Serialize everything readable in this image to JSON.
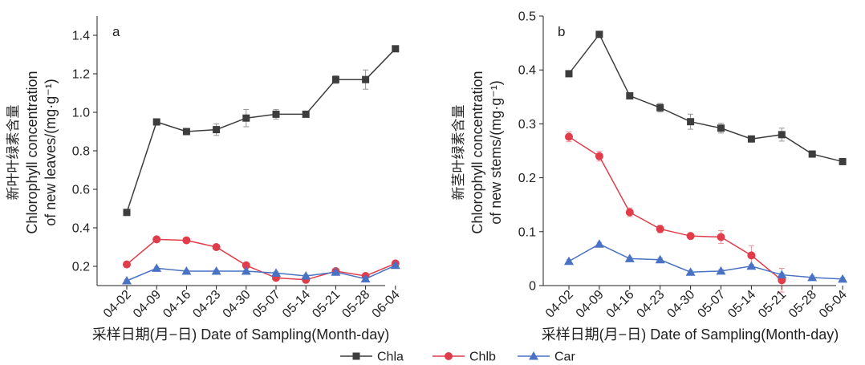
{
  "legend": [
    {
      "name": "Chla",
      "color": "#3d3d3d",
      "marker": "square"
    },
    {
      "name": "Chlb",
      "color": "#e03c4a",
      "marker": "circle"
    },
    {
      "name": "Car",
      "color": "#4a72c4",
      "marker": "triangle"
    }
  ],
  "chart_data": [
    {
      "type": "line",
      "panel_label": "a",
      "xlabel": "采样日期(月−日) Date of Sampling(Month-day)",
      "ylabel_lines": [
        "新叶叶绿素含量",
        "Chlorophyll concentration",
        "of new leaves/(mg·g⁻¹)"
      ],
      "categories": [
        "04-02",
        "04-09",
        "04-16",
        "04-23",
        "04-30",
        "05-07",
        "05-14",
        "05-21",
        "05-28",
        "06-04"
      ],
      "ylim": [
        0.1,
        1.5
      ],
      "yticks": [
        0.2,
        0.4,
        0.6,
        0.8,
        1.0,
        1.2,
        1.4
      ],
      "ytick_labels": [
        "0.2",
        "0.4",
        "0.6",
        "0.8",
        "1.0",
        "1.2",
        "1.4"
      ],
      "grid": false,
      "series": [
        {
          "name": "Chla",
          "values": [
            0.48,
            0.95,
            0.9,
            0.91,
            0.97,
            0.99,
            0.99,
            1.17,
            1.17,
            1.33
          ],
          "errors": [
            0.01,
            0.01,
            0.01,
            0.03,
            0.045,
            0.025,
            0.01,
            0.02,
            0.05,
            0.01
          ]
        },
        {
          "name": "Chlb",
          "values": [
            0.21,
            0.34,
            0.335,
            0.3,
            0.205,
            0.14,
            0.13,
            0.175,
            0.15,
            0.215
          ],
          "errors": [
            0.008,
            0.008,
            0.008,
            0.01,
            0.008,
            0.01,
            0.01,
            0.01,
            0.012,
            0.01
          ]
        },
        {
          "name": "Car",
          "values": [
            0.125,
            0.19,
            0.175,
            0.175,
            0.175,
            0.165,
            0.15,
            0.17,
            0.135,
            0.205
          ],
          "errors": [
            0.006,
            0.006,
            0.006,
            0.006,
            0.006,
            0.006,
            0.006,
            0.006,
            0.006,
            0.006
          ]
        }
      ]
    },
    {
      "type": "line",
      "panel_label": "b",
      "xlabel": "采样日期(月−日) Date of Sampling(Month-day)",
      "ylabel_lines": [
        "新茎叶绿素含量",
        "Chlorophyll concentration",
        "of new stems/(mg·g⁻¹)"
      ],
      "categories": [
        "04-02",
        "04-09",
        "04-16",
        "04-23",
        "04-30",
        "05-07",
        "05-14",
        "05-21",
        "05-28",
        "06-04"
      ],
      "ylim": [
        0,
        0.5
      ],
      "yticks": [
        0,
        0.1,
        0.2,
        0.3,
        0.4,
        0.5
      ],
      "ytick_labels": [
        "0",
        "0.1",
        "0.2",
        "0.3",
        "0.4",
        "0.5"
      ],
      "grid": false,
      "series": [
        {
          "name": "Chla",
          "values": [
            0.393,
            0.466,
            0.352,
            0.33,
            0.304,
            0.292,
            0.272,
            0.28,
            0.244,
            0.23
          ],
          "errors": [
            0.004,
            0.004,
            0.005,
            0.008,
            0.014,
            0.009,
            0.003,
            0.012,
            0.003,
            0.003
          ]
        },
        {
          "name": "Chlb",
          "values": [
            0.276,
            0.24,
            0.136,
            0.105,
            0.092,
            0.09,
            0.056,
            0.01,
            null,
            null
          ],
          "errors": [
            0.009,
            0.009,
            0.008,
            0.007,
            0.004,
            0.012,
            0.018,
            0.022,
            null,
            null
          ]
        },
        {
          "name": "Car",
          "values": [
            0.045,
            0.077,
            0.05,
            0.048,
            0.025,
            0.027,
            0.036,
            0.02,
            0.015,
            0.012
          ],
          "errors": [
            0.003,
            0.003,
            0.003,
            0.003,
            0.003,
            0.003,
            0.003,
            0.003,
            0.003,
            0.003
          ]
        }
      ]
    }
  ]
}
